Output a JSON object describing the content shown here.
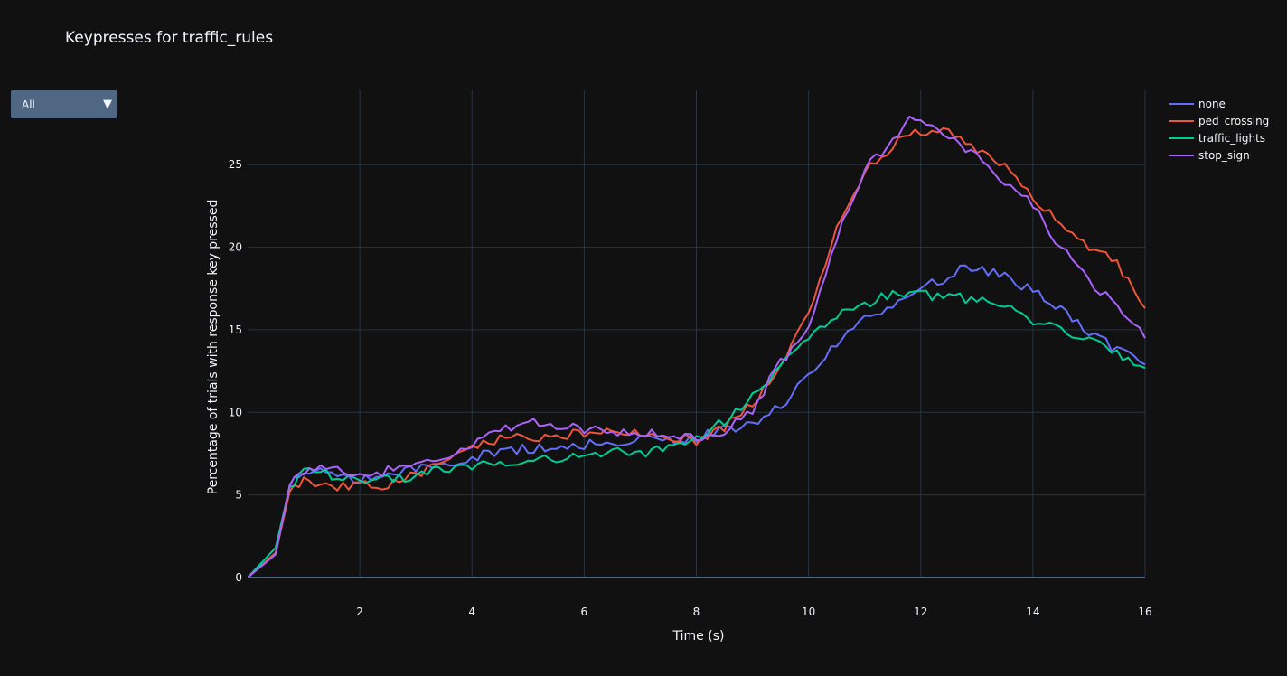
{
  "title": "Keypresses for traffic_rules",
  "dropdown": {
    "selected": "All",
    "arrow_icon": "triangle-down-icon"
  },
  "chart_data": {
    "type": "line",
    "title": "Keypresses for traffic_rules",
    "xlabel": "Time (s)",
    "ylabel": "Percentage of trials with response key pressed",
    "xlim": [
      0,
      16
    ],
    "ylim": [
      0,
      29.5
    ],
    "xticks": [
      2,
      4,
      6,
      8,
      10,
      12,
      14,
      16
    ],
    "yticks": [
      0,
      5,
      10,
      15,
      20,
      25
    ],
    "grid": true,
    "legend_position": "top-right",
    "series": [
      {
        "name": "none",
        "color": "#636efa",
        "x": [
          0,
          0.5,
          0.75,
          1,
          1.5,
          2,
          2.5,
          3,
          3.5,
          4,
          4.5,
          5,
          5.5,
          6,
          6.5,
          7,
          7.5,
          8,
          8.5,
          9,
          9.5,
          10,
          10.5,
          11,
          11.5,
          12,
          12.5,
          12.8,
          13,
          13.5,
          14,
          14.5,
          15,
          15.5,
          16
        ],
        "y": [
          0,
          1.5,
          5.5,
          6.5,
          6.3,
          5.9,
          6.2,
          6.6,
          6.9,
          7.3,
          7.6,
          7.8,
          7.9,
          8,
          8.2,
          8.3,
          8.4,
          8.5,
          8.9,
          9.4,
          10.4,
          12.2,
          14.2,
          15.6,
          16.6,
          17.6,
          18.2,
          18.9,
          18.7,
          18.2,
          17.3,
          16.2,
          14.8,
          13.8,
          12.9
        ]
      },
      {
        "name": "ped_crossing",
        "color": "#ef553b",
        "x": [
          0,
          0.5,
          0.75,
          1,
          1.5,
          2,
          2.5,
          3,
          3.5,
          4,
          4.5,
          5,
          5.5,
          6,
          6.5,
          7,
          7.5,
          8,
          8.5,
          9,
          9.5,
          10,
          10.5,
          11,
          11.5,
          12,
          12.5,
          13,
          13.5,
          14,
          14.5,
          15,
          15.5,
          16
        ],
        "y": [
          0,
          1.5,
          5.2,
          5.8,
          5.4,
          5.7,
          5.6,
          6.2,
          7,
          7.8,
          8.4,
          8.5,
          8.5,
          8.8,
          8.8,
          8.7,
          8.6,
          8.3,
          9.1,
          10.5,
          12.8,
          16,
          21,
          24.5,
          26.2,
          27.1,
          27,
          25.8,
          24.8,
          23,
          21.5,
          20,
          19,
          16.3
        ]
      },
      {
        "name": "traffic_lights",
        "color": "#00cc96",
        "x": [
          0,
          0.5,
          0.75,
          1,
          1.5,
          2,
          2.5,
          3,
          3.5,
          4,
          4.5,
          5,
          5.5,
          6,
          6.5,
          7,
          7.5,
          8,
          8.5,
          9,
          9.5,
          10,
          10.5,
          11,
          11.5,
          12,
          12.5,
          13,
          13.5,
          14,
          14.5,
          15,
          15.5,
          16
        ],
        "y": [
          0,
          1.8,
          5.5,
          6.5,
          6.2,
          5.8,
          5.9,
          6.2,
          6.5,
          6.8,
          6.9,
          7,
          7.2,
          7.5,
          7.6,
          7.5,
          7.8,
          8.4,
          9.5,
          11,
          12.8,
          14.5,
          15.8,
          16.5,
          17.2,
          17.1,
          17,
          16.8,
          16.4,
          15.6,
          15,
          14.3,
          13.6,
          12.7
        ]
      },
      {
        "name": "stop_sign",
        "color": "#ab63fa",
        "x": [
          0,
          0.5,
          0.75,
          1,
          1.5,
          2,
          2.5,
          3,
          3.5,
          4,
          4.5,
          5,
          5.5,
          6,
          6.5,
          7,
          7.5,
          8,
          8.5,
          9,
          9.5,
          10,
          10.5,
          11,
          11.5,
          11.8,
          12,
          12.5,
          13,
          13.5,
          14,
          14.5,
          15,
          15.5,
          16
        ],
        "y": [
          0,
          1.4,
          5.6,
          6.4,
          6.6,
          6,
          6.5,
          6.8,
          7.4,
          7.9,
          9,
          9.4,
          9.2,
          9,
          8.9,
          8.8,
          8.5,
          8.4,
          8.9,
          10.2,
          13,
          15.2,
          20.5,
          24.8,
          26.5,
          27.8,
          27.8,
          26.8,
          25.5,
          24,
          22.5,
          20,
          18,
          16.5,
          14.5
        ]
      }
    ]
  }
}
